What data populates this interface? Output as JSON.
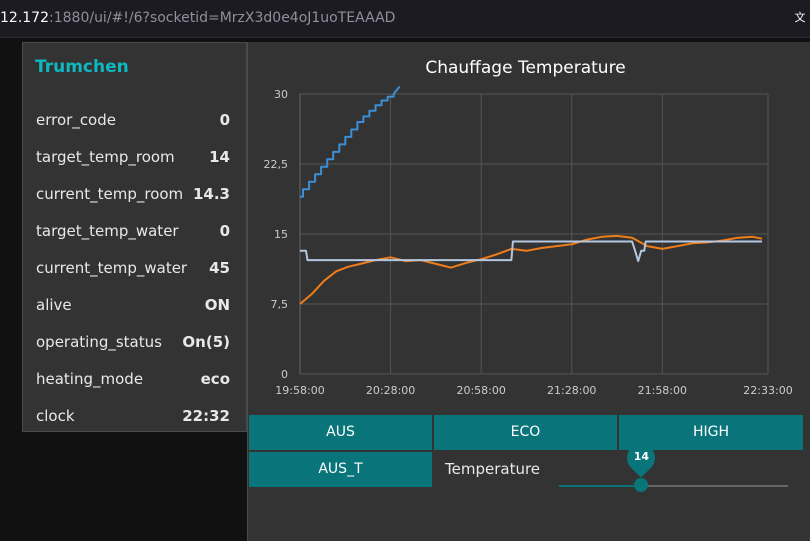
{
  "browser": {
    "url_host": "12.172",
    "url_rest": ":1880/ui/#!/6?socketid=MrzX3d0e4oJ1uoTEAAAD",
    "translate_icon": "translate-icon"
  },
  "card": {
    "title": "Trumchen",
    "rows": [
      {
        "label": "error_code",
        "value": "0"
      },
      {
        "label": "target_temp_room",
        "value": "14"
      },
      {
        "label": "current_temp_room",
        "value": "14.3"
      },
      {
        "label": "target_temp_water",
        "value": "0"
      },
      {
        "label": "current_temp_water",
        "value": "45"
      },
      {
        "label": "alive",
        "value": "ON"
      },
      {
        "label": "operating_status",
        "value": "On(5)"
      },
      {
        "label": "heating_mode",
        "value": "eco"
      },
      {
        "label": "clock",
        "value": "22:32"
      }
    ]
  },
  "controls": {
    "aus_label": "AUS",
    "eco_label": "ECO",
    "high_label": "HIGH",
    "aus_t_label": "AUS_T",
    "temperature_label": "Temperature",
    "slider_value": "14",
    "slider_fraction": 0.36
  },
  "colors": {
    "accent": "#097479",
    "title_accent": "#0eb8c0",
    "series_water": "#3b8fd6",
    "series_room": "#ef7d1a",
    "series_target": "#b4c7e0"
  },
  "chart_data": {
    "type": "line",
    "title": "Chauffage Temperature",
    "ylim": [
      0,
      30
    ],
    "yticks": [
      "0",
      "7,5",
      "15",
      "22,5",
      "30"
    ],
    "xticks": [
      "19:58:00",
      "20:28:00",
      "20:58:00",
      "21:28:00",
      "21:58:00",
      "22:33:00"
    ],
    "xtick_minutes": [
      0,
      30,
      60,
      90,
      120,
      155
    ],
    "xlim_minutes": [
      0,
      155
    ],
    "grid": true,
    "series": [
      {
        "color": "#3b8fd6",
        "x": [
          0,
          1,
          1,
          3,
          3,
          5,
          5,
          7,
          7,
          9,
          9,
          11,
          11,
          13,
          13,
          15,
          15,
          17,
          17,
          19,
          19,
          21,
          21,
          23,
          23,
          25,
          25,
          27,
          27,
          29,
          29,
          31,
          31,
          33
        ],
        "y": [
          19,
          19,
          19.8,
          19.8,
          20.6,
          20.6,
          21.4,
          21.4,
          22.2,
          22.2,
          23,
          23,
          23.8,
          23.8,
          24.6,
          24.6,
          25.4,
          25.4,
          26.2,
          26.2,
          27,
          27,
          27.6,
          27.6,
          28.2,
          28.2,
          28.8,
          28.8,
          29.3,
          29.3,
          29.7,
          29.7,
          30,
          30.8
        ]
      },
      {
        "color": "#ef7d1a",
        "x": [
          0,
          4,
          8,
          12,
          16,
          20,
          25,
          30,
          35,
          40,
          45,
          50,
          55,
          60,
          65,
          70,
          75,
          80,
          85,
          90,
          95,
          100,
          105,
          110,
          115,
          120,
          125,
          130,
          135,
          140,
          145,
          150,
          153
        ],
        "y": [
          7.5,
          8.6,
          10,
          11,
          11.5,
          11.8,
          12.2,
          12.5,
          12.1,
          12.2,
          11.8,
          11.4,
          11.9,
          12.3,
          12.8,
          13.4,
          13.2,
          13.5,
          13.7,
          13.9,
          14.4,
          14.7,
          14.8,
          14.6,
          13.7,
          13.4,
          13.7,
          14,
          14.1,
          14.3,
          14.6,
          14.7,
          14.5
        ]
      },
      {
        "color": "#b4c7e0",
        "x": [
          0,
          2,
          2.5,
          70,
          70.5,
          110,
          111,
          112,
          113,
          114,
          114.5,
          153
        ],
        "y": [
          13.2,
          13.2,
          12.2,
          12.2,
          14.2,
          14.2,
          13.2,
          12.1,
          13.2,
          13.2,
          14.2,
          14.2
        ]
      }
    ]
  }
}
